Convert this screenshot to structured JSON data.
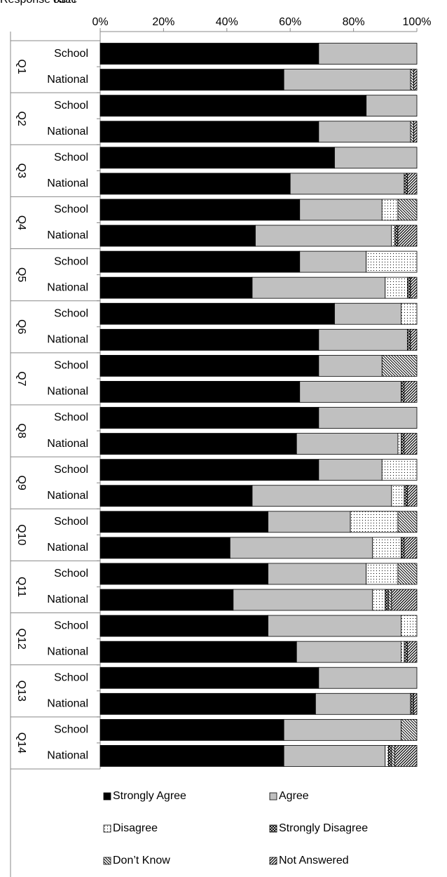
{
  "chart_data": {
    "type": "stacked-barh",
    "annotations": [
      "Response Rate",
      "83%"
    ],
    "groups": [
      "Q1",
      "Q2",
      "Q3",
      "Q4",
      "Q5",
      "Q6",
      "Q7",
      "Q8",
      "Q9",
      "Q10",
      "Q11",
      "Q12",
      "Q13",
      "Q14"
    ],
    "bar_labels": [
      "School",
      "National"
    ],
    "xlim": [
      0,
      100
    ],
    "xticks": [
      {
        "value": 0,
        "label": "0%"
      },
      {
        "value": 20,
        "label": "20%"
      },
      {
        "value": 40,
        "label": "40%"
      },
      {
        "value": 60,
        "label": "60%"
      },
      {
        "value": 80,
        "label": "80%"
      },
      {
        "value": 100,
        "label": "100%"
      }
    ],
    "series": [
      {
        "name": "Strongly Agree",
        "color": "#000000",
        "pattern": "solid",
        "values": [
          69,
          58,
          84,
          69,
          74,
          60,
          63,
          49,
          63,
          48,
          74,
          69,
          69,
          63,
          69,
          62,
          69,
          48,
          53,
          41,
          53,
          42,
          53,
          62,
          69,
          68,
          58,
          58
        ]
      },
      {
        "name": "Agree",
        "color": "#c0c0c0",
        "pattern": "solid",
        "values": [
          31,
          40,
          16,
          29,
          26,
          36,
          26,
          43,
          21,
          42,
          21,
          28,
          20,
          32,
          31,
          32,
          20,
          44,
          26,
          45,
          31,
          44,
          42,
          33,
          31,
          30,
          37,
          32
        ]
      },
      {
        "name": "Disagree",
        "color": "#ffffff",
        "pattern": "dots",
        "values": [
          0,
          0,
          0,
          0,
          0,
          0,
          5,
          1,
          16,
          7,
          5,
          0,
          0,
          0,
          0,
          1,
          11,
          4,
          15,
          9,
          10,
          4,
          5,
          1,
          0,
          0,
          0,
          1
        ]
      },
      {
        "name": "Strongly Disagree",
        "color": "#ffffff",
        "pattern": "crosshatch",
        "values": [
          0,
          0,
          0,
          0,
          0,
          1,
          0,
          1,
          0,
          1,
          0,
          1,
          0,
          1,
          0,
          1,
          0,
          1,
          0,
          1,
          0,
          1,
          0,
          1,
          0,
          1,
          0,
          1
        ]
      },
      {
        "name": "Don’t Know",
        "color": "#ffffff",
        "pattern": "hatch-down",
        "values": [
          0,
          1,
          0,
          1,
          0,
          0,
          6,
          0,
          0,
          0,
          0,
          0,
          11,
          0,
          0,
          0,
          0,
          0,
          6,
          0,
          6,
          1,
          0,
          0,
          0,
          0,
          5,
          1
        ]
      },
      {
        "name": "Not Answered",
        "color": "#ffffff",
        "pattern": "hatch-up",
        "values": [
          0,
          1,
          0,
          1,
          0,
          3,
          0,
          6,
          0,
          2,
          0,
          2,
          0,
          4,
          0,
          4,
          0,
          3,
          0,
          4,
          0,
          8,
          0,
          3,
          0,
          1,
          0,
          7
        ]
      }
    ]
  }
}
